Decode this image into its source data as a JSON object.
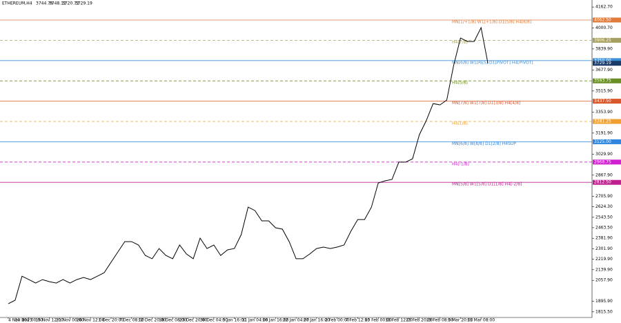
{
  "chart_data": {
    "type": "line",
    "header": {
      "symbol": "ETHEREUM,H4",
      "ohlc": [
        "3744.76",
        "3748.12",
        "3720.72",
        "3729.19"
      ]
    },
    "categories": [
      "4 Nov 2023",
      null,
      null,
      "10 Nov 00:00",
      null,
      null,
      "15 Nov 12:00",
      null,
      null,
      "21 Nov 00:00",
      null,
      null,
      "26 Nov 12:00",
      null,
      null,
      "1 Dec 20:00",
      null,
      null,
      "7 Dec 08:00",
      null,
      null,
      "12 Dec 20:00",
      null,
      null,
      "18 Dec 08:00",
      null,
      null,
      "23 Dec 20:00",
      null,
      null,
      "30 Dec 04:00",
      null,
      null,
      "5 Jan 16:00",
      null,
      null,
      "11 Jan 04:00",
      null,
      null,
      "16 Jan 16:00",
      null,
      null,
      "22 Jan 04:00",
      null,
      null,
      "27 Jan 16:00",
      null,
      null,
      "2 Feb 00:00",
      null,
      null,
      "7 Feb 12:00",
      null,
      null,
      "13 Feb 00:00",
      null,
      null,
      "18 Feb 12:00",
      null,
      null,
      "23 Feb 20:00",
      null,
      null,
      "29 Feb 08:00",
      null,
      null,
      "5 Mar 20:00",
      null,
      null,
      "11 Mar 08:00",
      null
    ],
    "series": [
      {
        "name": "ETHEREUM,H4",
        "color": "#000000",
        "values": [
          1878,
          1905,
          2090,
          2064,
          2037,
          2064,
          2048,
          2037,
          2064,
          2037,
          2064,
          2080,
          2064,
          2090,
          2117,
          2197,
          2277,
          2356,
          2356,
          2330,
          2250,
          2224,
          2303,
          2250,
          2224,
          2330,
          2261,
          2224,
          2383,
          2303,
          2330,
          2250,
          2293,
          2303,
          2410,
          2622,
          2595,
          2516,
          2516,
          2463,
          2452,
          2356,
          2224,
          2224,
          2261,
          2303,
          2314,
          2303,
          2314,
          2330,
          2436,
          2526,
          2526,
          2622,
          2808,
          2824,
          2835,
          2968,
          2968,
          2994,
          3180,
          3287,
          3419,
          3409,
          3446,
          3712,
          3924,
          3897,
          3897,
          4004,
          3729.19
        ]
      }
    ],
    "ylim": [
      1772,
      4216.6
    ],
    "yticks": [
      {
        "value": 4162.7,
        "label": "4162.70"
      },
      {
        "value": 4000.7,
        "label": "4000.70"
      },
      {
        "value": 3839.9,
        "label": "3839.90"
      },
      {
        "value": 3677.9,
        "label": "3677.90"
      },
      {
        "value": 3515.9,
        "label": "3515.90"
      },
      {
        "value": 3353.9,
        "label": "3353.90"
      },
      {
        "value": 3191.9,
        "label": "3191.90"
      },
      {
        "value": 3029.9,
        "label": "3029.90"
      },
      {
        "value": 2867.9,
        "label": "2867.90"
      },
      {
        "value": 2705.9,
        "label": "2705.90"
      },
      {
        "value": 2624.3,
        "label": "2624.30"
      },
      {
        "value": 2543.5,
        "label": "2543.50"
      },
      {
        "value": 2463.5,
        "label": "2463.50"
      },
      {
        "value": 2381.9,
        "label": "2381.90"
      },
      {
        "value": 2301.9,
        "label": "2301.90"
      },
      {
        "value": 2219.9,
        "label": "2219.90"
      },
      {
        "value": 2139.9,
        "label": "2139.90"
      },
      {
        "value": 2057.9,
        "label": "2057.90"
      },
      {
        "value": 1895.9,
        "label": "1895.90"
      },
      {
        "value": 1815.5,
        "label": "1815.50"
      }
    ],
    "levels": [
      {
        "value": 4062.5,
        "label": "4062.50",
        "text": "MN[1/+1/8] W1[+1/8] D1[5/8] H4[8/8]",
        "color": "#e07b39",
        "style": "solid"
      },
      {
        "value": 3906.25,
        "label": "3906.25",
        "text": "H4[7/8]",
        "color": "#a5a060",
        "style": "dashed"
      },
      {
        "value": 3750,
        "label": "3750.00",
        "text": "MN[6/8] W1[RES] D1[PIVOT] H4[PIVOT]",
        "color": "#3a8fd8",
        "style": "solid"
      },
      {
        "value": 3593.75,
        "label": "3593.75",
        "text": "H4[5/8]",
        "color": "#6b8e23",
        "style": "dashed"
      },
      {
        "value": 3437.5,
        "label": "3437.50",
        "text": "MN[7/8] W1[7/8] D1[3/8] H4[4/8]",
        "color": "#d9582b",
        "style": "solid"
      },
      {
        "value": 3281.25,
        "label": "3281.25",
        "text": "H4[1/8]",
        "color": "#f0a030",
        "style": "dashed"
      },
      {
        "value": 3125,
        "label": "3125.00",
        "text": "MN[6/8] W[8/8] D1[2/8] H4SUP",
        "color": "#2e86de",
        "style": "solid"
      },
      {
        "value": 2968.75,
        "label": "2968.75",
        "text": "H4[-1/8]",
        "color": "#d020d0",
        "style": "dashed"
      },
      {
        "value": 2812.5,
        "label": "2812.50",
        "text": "MN[5/8] W1[5/8] D1[1/8] H4[-2/8]",
        "color": "#c0208f",
        "style": "solid"
      }
    ]
  }
}
